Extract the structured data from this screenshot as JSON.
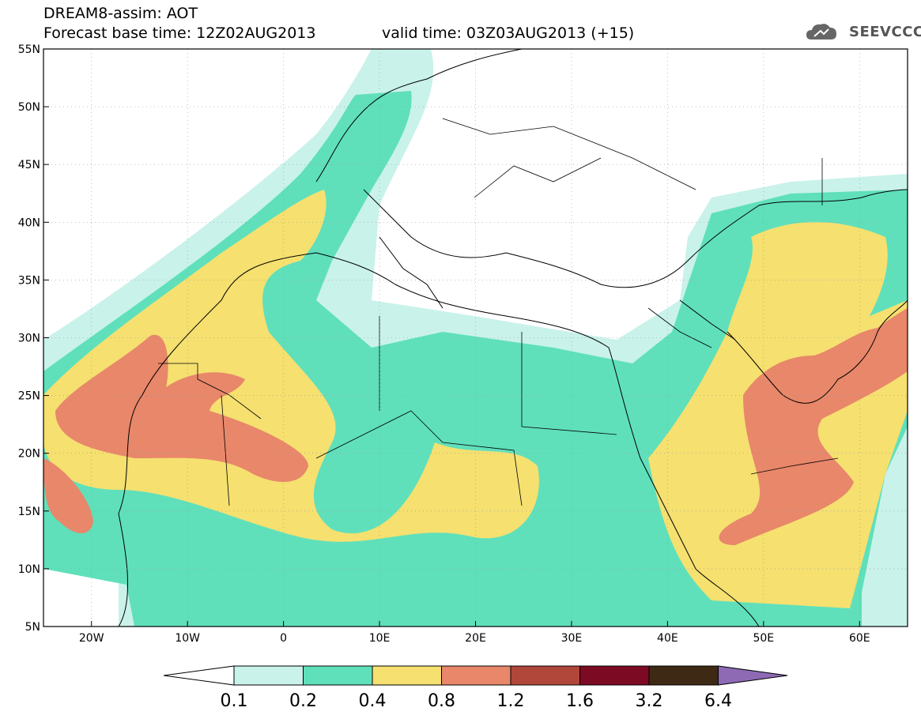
{
  "header": {
    "title": "DREAM8-assim: AOT",
    "base_time": "Forecast base time: 12Z02AUG2013",
    "valid_time": "valid time: 03Z03AUG2013 (+15)"
  },
  "logo": {
    "icon": "cloud-icon",
    "text": "SEEVCCC"
  },
  "axes": {
    "lon_labels": [
      "20W",
      "10W",
      "0",
      "10E",
      "20E",
      "30E",
      "40E",
      "50E",
      "60E"
    ],
    "lat_labels": [
      "55N",
      "50N",
      "45N",
      "40N",
      "35N",
      "30N",
      "25N",
      "20N",
      "15N",
      "10N",
      "5N"
    ],
    "lon_range": [
      -25,
      65
    ],
    "lat_range": [
      5,
      55
    ],
    "grid": true
  },
  "colorbar": {
    "labels": [
      "0.1",
      "0.2",
      "0.4",
      "0.8",
      "1.2",
      "1.6",
      "3.2",
      "6.4"
    ],
    "colors": [
      "#ffffff",
      "#c9f2ea",
      "#5fe0bb",
      "#f5e070",
      "#e8876a",
      "#b0473a",
      "#7d0a23",
      "#3e2a14",
      "#8e6ab5"
    ]
  }
}
